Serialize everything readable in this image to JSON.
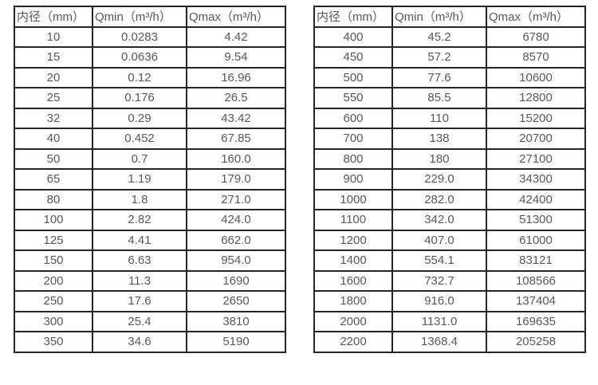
{
  "page": {
    "background_color": "#ffffff",
    "border_color": "#262626",
    "text_color": "#595959"
  },
  "tables": [
    {
      "name": "flow-spec-small-diameters",
      "headers": [
        "内径（mm）",
        "Qmin（m³/h）",
        "Qmax（m³/h）"
      ],
      "rows": [
        [
          "10",
          "0.0283",
          "4.42"
        ],
        [
          "15",
          "0.0636",
          "9.54"
        ],
        [
          "20",
          "0.12",
          "16.96"
        ],
        [
          "25",
          "0.176",
          "26.5"
        ],
        [
          "32",
          "0.29",
          "43.42"
        ],
        [
          "40",
          "0.452",
          "67.85"
        ],
        [
          "50",
          "0.7",
          "160.0"
        ],
        [
          "65",
          "1.19",
          "179.0"
        ],
        [
          "80",
          "1.8",
          "271.0"
        ],
        [
          "100",
          "2.82",
          "424.0"
        ],
        [
          "125",
          "4.41",
          "662.0"
        ],
        [
          "150",
          "6.63",
          "954.0"
        ],
        [
          "200",
          "11.3",
          "1690"
        ],
        [
          "250",
          "17.6",
          "2650"
        ],
        [
          "300",
          "25.4",
          "3810"
        ],
        [
          "350",
          "34.6",
          "5190"
        ]
      ]
    },
    {
      "name": "flow-spec-large-diameters",
      "headers": [
        "内径（mm）",
        "Qmin（m³/h）",
        "Qmax（m³/h）"
      ],
      "rows": [
        [
          "400",
          "45.2",
          "6780"
        ],
        [
          "450",
          "57.2",
          "8570"
        ],
        [
          "500",
          "77.6",
          "10600"
        ],
        [
          "550",
          "85.5",
          "12800"
        ],
        [
          "600",
          "110",
          "15200"
        ],
        [
          "700",
          "138",
          "20700"
        ],
        [
          "800",
          "180",
          "27100"
        ],
        [
          "900",
          "229.0",
          "34300"
        ],
        [
          "1000",
          "282.0",
          "42400"
        ],
        [
          "1100",
          "342.0",
          "51300"
        ],
        [
          "1200",
          "407.0",
          "61000"
        ],
        [
          "1400",
          "554.1",
          "83121"
        ],
        [
          "1600",
          "732.7",
          "108566"
        ],
        [
          "1800",
          "916.0",
          "137404"
        ],
        [
          "2000",
          "1131.0",
          "169635"
        ],
        [
          "2200",
          "1368.4",
          "205258"
        ]
      ]
    }
  ]
}
